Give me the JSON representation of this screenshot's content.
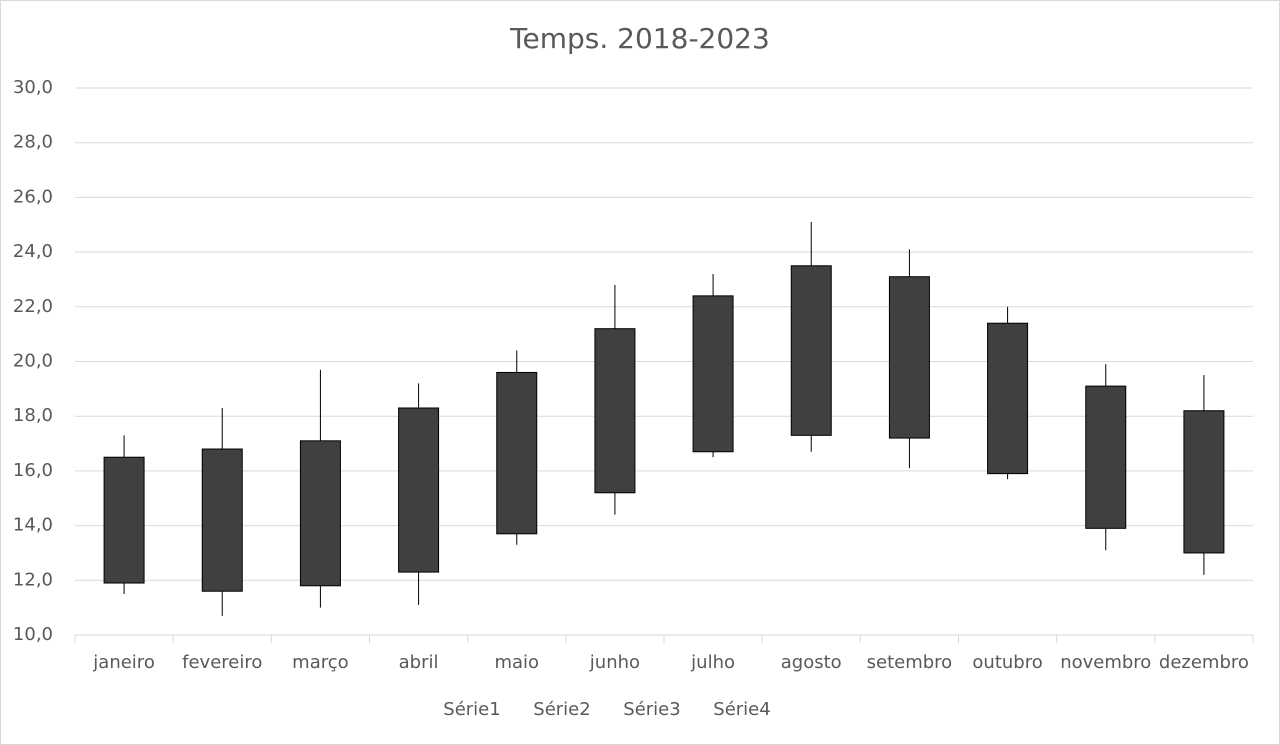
{
  "chart_data": {
    "type": "candlestick",
    "title": "Temps. 2018-2023",
    "categories": [
      "janeiro",
      "fevereiro",
      "março",
      "abril",
      "maio",
      "junho",
      "julho",
      "agosto",
      "setembro",
      "outubro",
      "novembro",
      "dezembro"
    ],
    "series": [
      {
        "name": "Série1",
        "values": [
          16.5,
          16.8,
          17.1,
          18.3,
          19.6,
          21.2,
          22.4,
          23.5,
          23.1,
          21.4,
          19.1,
          18.2
        ]
      },
      {
        "name": "Série2",
        "values": [
          17.3,
          18.3,
          19.7,
          19.2,
          20.4,
          22.8,
          23.2,
          25.1,
          24.1,
          22.0,
          19.9,
          19.5
        ]
      },
      {
        "name": "Série3",
        "values": [
          11.5,
          10.7,
          11.0,
          11.1,
          13.3,
          14.4,
          16.5,
          16.7,
          16.1,
          15.7,
          13.1,
          12.2
        ]
      },
      {
        "name": "Série4",
        "values": [
          11.9,
          11.6,
          11.8,
          12.3,
          13.7,
          15.2,
          16.7,
          17.3,
          17.2,
          15.9,
          13.9,
          13.0
        ]
      }
    ],
    "color": "#404040",
    "ylim": [
      10,
      30
    ],
    "yticks": [
      {
        "value": 10,
        "label": "10,0"
      },
      {
        "value": 12,
        "label": "12,0"
      },
      {
        "value": 14,
        "label": "14,0"
      },
      {
        "value": 16,
        "label": "16,0"
      },
      {
        "value": 18,
        "label": "18,0"
      },
      {
        "value": 20,
        "label": "20,0"
      },
      {
        "value": 22,
        "label": "22,0"
      },
      {
        "value": 24,
        "label": "24,0"
      },
      {
        "value": 26,
        "label": "26,0"
      },
      {
        "value": 28,
        "label": "28,0"
      },
      {
        "value": 30,
        "label": "30,0"
      }
    ],
    "grid": true
  }
}
